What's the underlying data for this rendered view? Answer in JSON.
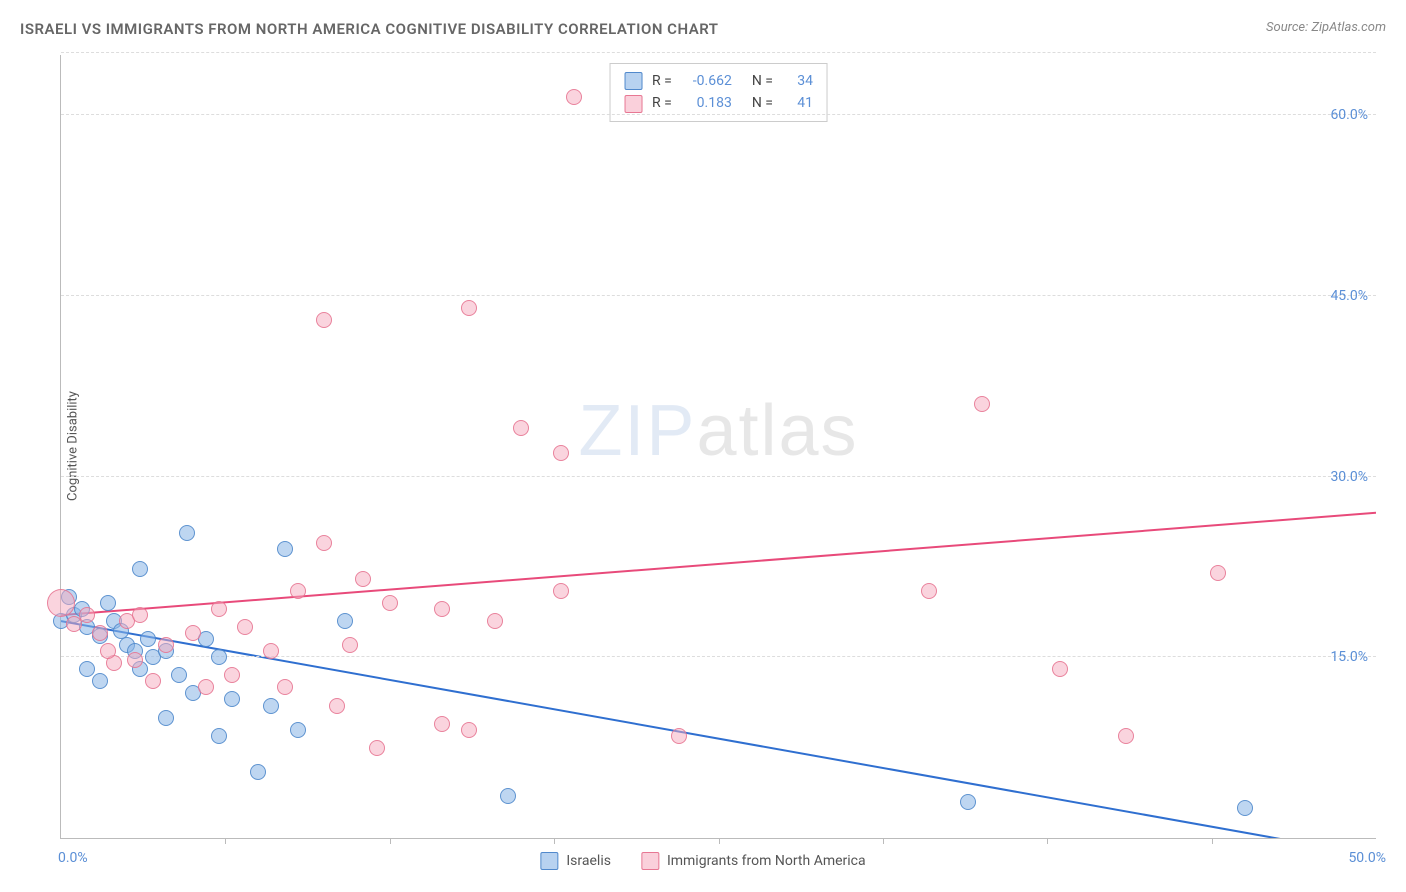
{
  "title": "ISRAELI VS IMMIGRANTS FROM NORTH AMERICA COGNITIVE DISABILITY CORRELATION CHART",
  "source_label": "Source: ",
  "source_name": "ZipAtlas.com",
  "watermark_bold": "ZIP",
  "watermark_thin": "atlas",
  "ylabel": "Cognitive Disability",
  "chart": {
    "type": "scatter",
    "xlim": [
      0,
      50
    ],
    "ylim": [
      0,
      65
    ],
    "x_ticks": [
      0,
      50
    ],
    "x_tick_labels": [
      "0.0%",
      "50.0%"
    ],
    "x_minor_ticks": [
      6.25,
      12.5,
      18.75,
      25,
      31.25,
      37.5,
      43.75
    ],
    "y_gridlines": [
      15,
      30,
      45,
      60,
      65.2
    ],
    "y_tick_labels": [
      "15.0%",
      "30.0%",
      "45.0%",
      "60.0%",
      ""
    ],
    "background_color": "#ffffff",
    "grid_color": "#dddddd",
    "axis_color": "#bbbbbb",
    "tick_label_color": "#5b8fd6",
    "marker_radius": 8,
    "series": [
      {
        "name": "Israelis",
        "color_fill": "rgba(137,180,230,0.55)",
        "color_stroke": "rgba(70,130,200,0.8)",
        "class": "blue",
        "r_value": "-0.662",
        "n_value": "34",
        "trend": {
          "x1": 0,
          "y1": 18,
          "x2": 50,
          "y2": -1.5,
          "stroke": "#2f6fd0",
          "width": 2
        },
        "points": [
          {
            "x": 4.8,
            "y": 25.3
          },
          {
            "x": 3.0,
            "y": 22.3
          },
          {
            "x": 0.0,
            "y": 18.0
          },
          {
            "x": 0.5,
            "y": 18.5
          },
          {
            "x": 1.0,
            "y": 17.5
          },
          {
            "x": 0.8,
            "y": 19.0
          },
          {
            "x": 2.0,
            "y": 18.0
          },
          {
            "x": 1.5,
            "y": 16.8
          },
          {
            "x": 2.5,
            "y": 16.0
          },
          {
            "x": 3.5,
            "y": 15.0
          },
          {
            "x": 3.0,
            "y": 14.0
          },
          {
            "x": 1.0,
            "y": 14.0
          },
          {
            "x": 1.5,
            "y": 13.0
          },
          {
            "x": 2.8,
            "y": 15.5
          },
          {
            "x": 4.0,
            "y": 15.5
          },
          {
            "x": 5.0,
            "y": 12.0
          },
          {
            "x": 6.5,
            "y": 11.5
          },
          {
            "x": 8.5,
            "y": 24.0
          },
          {
            "x": 8.0,
            "y": 11.0
          },
          {
            "x": 9.0,
            "y": 9.0
          },
          {
            "x": 10.8,
            "y": 18.0
          },
          {
            "x": 6.0,
            "y": 15.0
          },
          {
            "x": 6.0,
            "y": 8.5
          },
          {
            "x": 4.0,
            "y": 10.0
          },
          {
            "x": 7.5,
            "y": 5.5
          },
          {
            "x": 17.0,
            "y": 3.5
          },
          {
            "x": 34.5,
            "y": 3.0
          },
          {
            "x": 45.0,
            "y": 2.5
          },
          {
            "x": 0.3,
            "y": 20.0
          },
          {
            "x": 1.8,
            "y": 19.5
          },
          {
            "x": 2.3,
            "y": 17.2
          },
          {
            "x": 3.3,
            "y": 16.5
          },
          {
            "x": 4.5,
            "y": 13.5
          },
          {
            "x": 5.5,
            "y": 16.5
          }
        ]
      },
      {
        "name": "Immigrants from North America",
        "color_fill": "rgba(245,170,190,0.5)",
        "color_stroke": "rgba(230,110,140,0.8)",
        "class": "pink",
        "r_value": "0.183",
        "n_value": "41",
        "trend": {
          "x1": 0,
          "y1": 18.5,
          "x2": 50,
          "y2": 27,
          "stroke": "#e84a7a",
          "width": 2
        },
        "points": [
          {
            "x": 19.5,
            "y": 61.5
          },
          {
            "x": 10.0,
            "y": 43.0
          },
          {
            "x": 15.5,
            "y": 44.0
          },
          {
            "x": 17.5,
            "y": 34.0
          },
          {
            "x": 19.0,
            "y": 32.0
          },
          {
            "x": 35.0,
            "y": 36.0
          },
          {
            "x": 10.0,
            "y": 24.5
          },
          {
            "x": 11.5,
            "y": 21.5
          },
          {
            "x": 9.0,
            "y": 20.5
          },
          {
            "x": 12.5,
            "y": 19.5
          },
          {
            "x": 14.5,
            "y": 19.0
          },
          {
            "x": 16.5,
            "y": 18.0
          },
          {
            "x": 19.0,
            "y": 20.5
          },
          {
            "x": 8.0,
            "y": 15.5
          },
          {
            "x": 6.0,
            "y": 19.0
          },
          {
            "x": 5.0,
            "y": 17.0
          },
          {
            "x": 4.0,
            "y": 16.0
          },
          {
            "x": 2.0,
            "y": 14.5
          },
          {
            "x": 3.5,
            "y": 13.0
          },
          {
            "x": 5.5,
            "y": 12.5
          },
          {
            "x": 8.5,
            "y": 12.5
          },
          {
            "x": 10.5,
            "y": 11.0
          },
          {
            "x": 12.0,
            "y": 7.5
          },
          {
            "x": 14.5,
            "y": 9.5
          },
          {
            "x": 15.5,
            "y": 9.0
          },
          {
            "x": 23.5,
            "y": 8.5
          },
          {
            "x": 33.0,
            "y": 20.5
          },
          {
            "x": 38.0,
            "y": 14.0
          },
          {
            "x": 44.0,
            "y": 22.0
          },
          {
            "x": 40.5,
            "y": 8.5
          },
          {
            "x": 0.0,
            "y": 19.5,
            "r": 14
          },
          {
            "x": 0.5,
            "y": 17.8
          },
          {
            "x": 1.0,
            "y": 18.5
          },
          {
            "x": 1.5,
            "y": 17.0
          },
          {
            "x": 2.5,
            "y": 18.0
          },
          {
            "x": 3.0,
            "y": 18.5
          },
          {
            "x": 1.8,
            "y": 15.5
          },
          {
            "x": 2.8,
            "y": 14.8
          },
          {
            "x": 7.0,
            "y": 17.5
          },
          {
            "x": 6.5,
            "y": 13.5
          },
          {
            "x": 11.0,
            "y": 16.0
          }
        ]
      }
    ]
  },
  "legend_top": {
    "r_label": "R =",
    "n_label": "N ="
  },
  "legend_bottom": [
    {
      "class": "blue",
      "label": "Israelis"
    },
    {
      "class": "pink",
      "label": "Immigrants from North America"
    }
  ]
}
